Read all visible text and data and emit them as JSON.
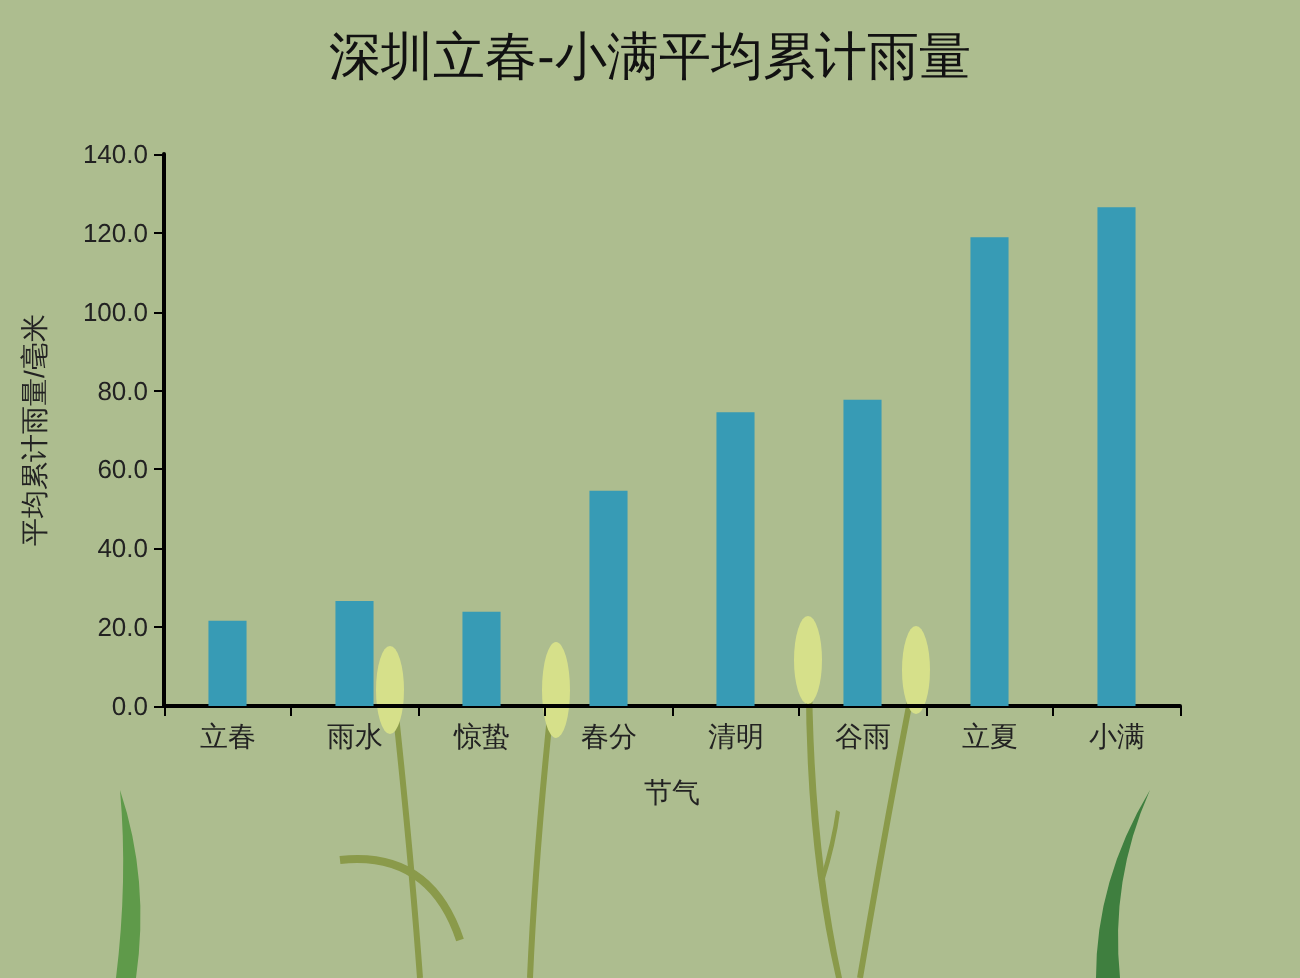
{
  "chart_data": {
    "type": "bar",
    "title": "深圳立春-小满平均累计雨量",
    "xlabel": "节气",
    "ylabel": "平均累计雨量/毫米",
    "categories": [
      "立春",
      "雨水",
      "惊蛰",
      "春分",
      "清明",
      "谷雨",
      "立夏",
      "小满"
    ],
    "values": [
      21.6,
      26.6,
      23.9,
      54.6,
      74.5,
      77.7,
      118.9,
      126.5
    ],
    "color": "#379bb5",
    "ylim": [
      0,
      140
    ],
    "yticks": [
      {
        "value": 0,
        "label": "0.0"
      },
      {
        "value": 20,
        "label": "20.0"
      },
      {
        "value": 40,
        "label": "40.0"
      },
      {
        "value": 60,
        "label": "60.0"
      },
      {
        "value": 80,
        "label": "80.0"
      },
      {
        "value": 100,
        "label": "100.0"
      },
      {
        "value": 120,
        "label": "120.0"
      },
      {
        "value": 140,
        "label": "140.0"
      }
    ],
    "grid": false
  }
}
